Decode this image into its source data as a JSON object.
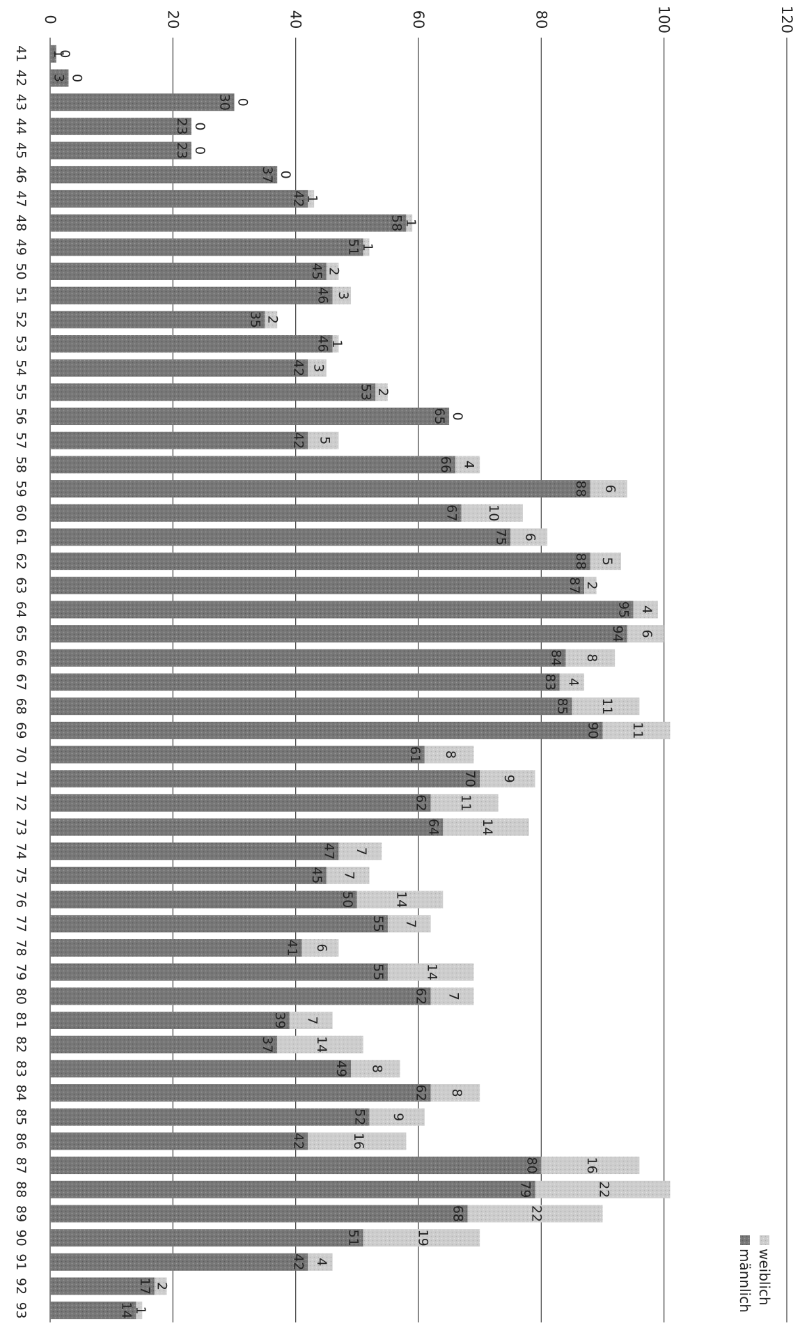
{
  "chart_data": {
    "type": "bar",
    "stacked": true,
    "orientation": "rotated",
    "title": "",
    "xlabel": "",
    "ylabel": "",
    "ylim": [
      0,
      120
    ],
    "ticks": [
      0,
      20,
      40,
      60,
      80,
      100,
      120
    ],
    "grid": true,
    "legend_position": "top-right",
    "categories": [
      "41",
      "42",
      "43",
      "44",
      "45",
      "46",
      "47",
      "48",
      "49",
      "50",
      "51",
      "52",
      "53",
      "54",
      "55",
      "56",
      "57",
      "58",
      "59",
      "60",
      "61",
      "62",
      "63",
      "64",
      "65",
      "66",
      "67",
      "68",
      "69",
      "70",
      "71",
      "72",
      "73",
      "74",
      "75",
      "76",
      "77",
      "78",
      "79",
      "80",
      "81",
      "82",
      "83",
      "84",
      "85",
      "86",
      "87",
      "88",
      "89",
      "90",
      "91",
      "92",
      "93"
    ],
    "series": [
      {
        "name": "männlich",
        "color": "#7a7a7a",
        "values": [
          1,
          3,
          30,
          23,
          23,
          37,
          42,
          58,
          51,
          45,
          46,
          35,
          46,
          42,
          53,
          65,
          42,
          66,
          88,
          67,
          75,
          88,
          87,
          95,
          94,
          84,
          83,
          85,
          90,
          61,
          70,
          62,
          64,
          47,
          45,
          50,
          55,
          41,
          55,
          62,
          39,
          37,
          49,
          62,
          52,
          42,
          80,
          79,
          68,
          51,
          42,
          17,
          14
        ]
      },
      {
        "name": "weiblich",
        "color": "#c4c4c4",
        "values": [
          0,
          0,
          0,
          0,
          0,
          0,
          1,
          1,
          1,
          2,
          3,
          2,
          1,
          3,
          2,
          0,
          5,
          4,
          6,
          10,
          6,
          5,
          2,
          4,
          6,
          8,
          4,
          11,
          11,
          8,
          9,
          11,
          14,
          7,
          7,
          14,
          7,
          6,
          14,
          7,
          7,
          14,
          8,
          8,
          9,
          16,
          16,
          22,
          22,
          19,
          4,
          2,
          1
        ]
      }
    ]
  }
}
